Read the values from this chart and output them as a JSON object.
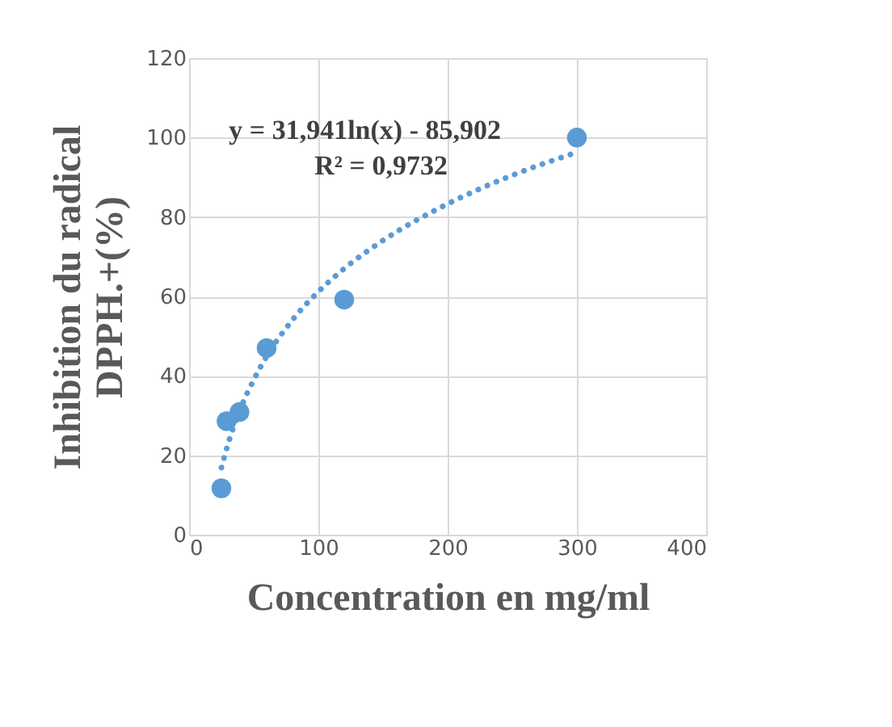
{
  "chart_data": {
    "type": "scatter",
    "xlabel": "Concentration en mg/ml",
    "ylabel": "Inhibition du radical\nDPPH.+(%)",
    "x": [
      25,
      29,
      39,
      60,
      120,
      300
    ],
    "series": [
      {
        "color": "#5b9bd5",
        "marker": "circle",
        "values": [
          11.7,
          28.6,
          30.9,
          47,
          59.2,
          100
        ]
      },
      {
        "type": "line",
        "color": "#5b9bd5",
        "line_style": "dotted",
        "x": [
          25,
          30,
          40,
          50,
          60,
          80,
          100,
          120,
          150,
          200,
          250,
          300
        ],
        "values": [
          16.9,
          22.7,
          31.9,
          39.0,
          44.9,
          54.1,
          61.2,
          67.0,
          74.1,
          83.3,
          90.5,
          96.3
        ]
      }
    ],
    "annotations": [
      "y = 31,941ln(x) - 85,902",
      "R² = 0,9732"
    ],
    "xlim": [
      0,
      400
    ],
    "xticks": [
      0,
      100,
      200,
      300,
      400
    ],
    "ylim": [
      0,
      120
    ],
    "yticks": [
      0,
      20,
      40,
      60,
      80,
      100,
      120
    ],
    "grid": true
  }
}
